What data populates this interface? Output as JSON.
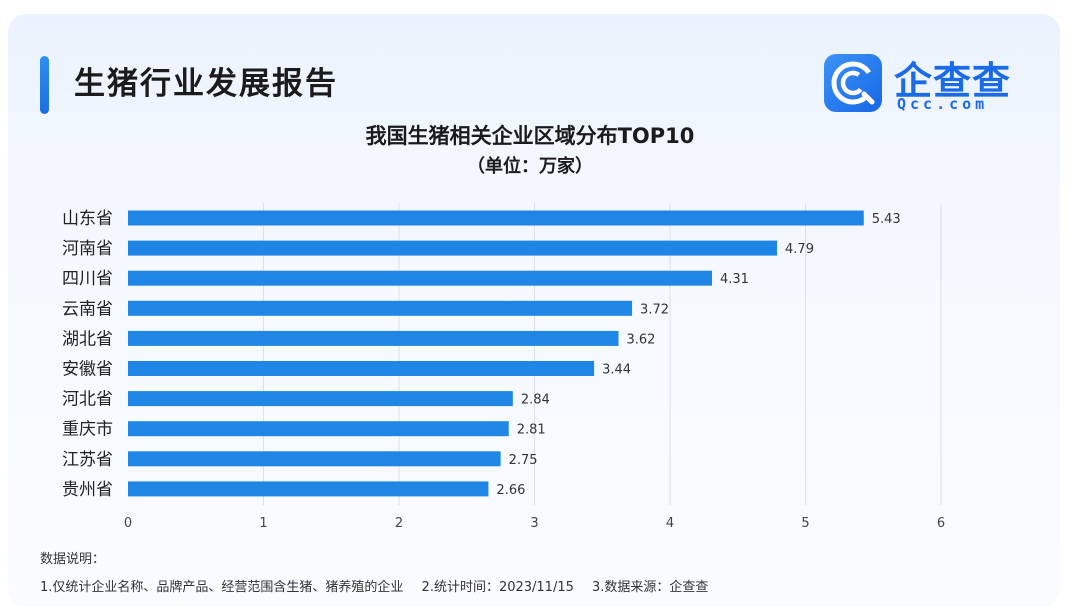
{
  "header": {
    "title": "生猪行业发展报告"
  },
  "logo": {
    "name": "企查查",
    "sub": "Qcc.com",
    "icon": "qcc-c-logo-icon",
    "color": "#1b6be8"
  },
  "notes": {
    "heading": "数据说明：",
    "items": [
      "1.仅统计企业名称、品牌产品、经营范围含生猪、猪养殖的企业",
      "2.统计时间：2023/11/15",
      "3.数据来源：企查查"
    ]
  },
  "chart_data": {
    "type": "bar",
    "orientation": "horizontal",
    "title": "我国生猪相关企业区域分布TOP10",
    "subtitle": "（单位：万家）",
    "categories": [
      "山东省",
      "河南省",
      "四川省",
      "云南省",
      "湖北省",
      "安徽省",
      "河北省",
      "重庆市",
      "江苏省",
      "贵州省"
    ],
    "values": [
      5.43,
      4.79,
      4.31,
      3.72,
      3.62,
      3.44,
      2.84,
      2.81,
      2.75,
      2.66
    ],
    "xlim": [
      0,
      6
    ],
    "xticks": [
      "0",
      "1",
      "2",
      "3",
      "4",
      "5",
      "6"
    ],
    "grid": "vertical",
    "bar_color": "#1f86e6",
    "data_labels": true
  }
}
